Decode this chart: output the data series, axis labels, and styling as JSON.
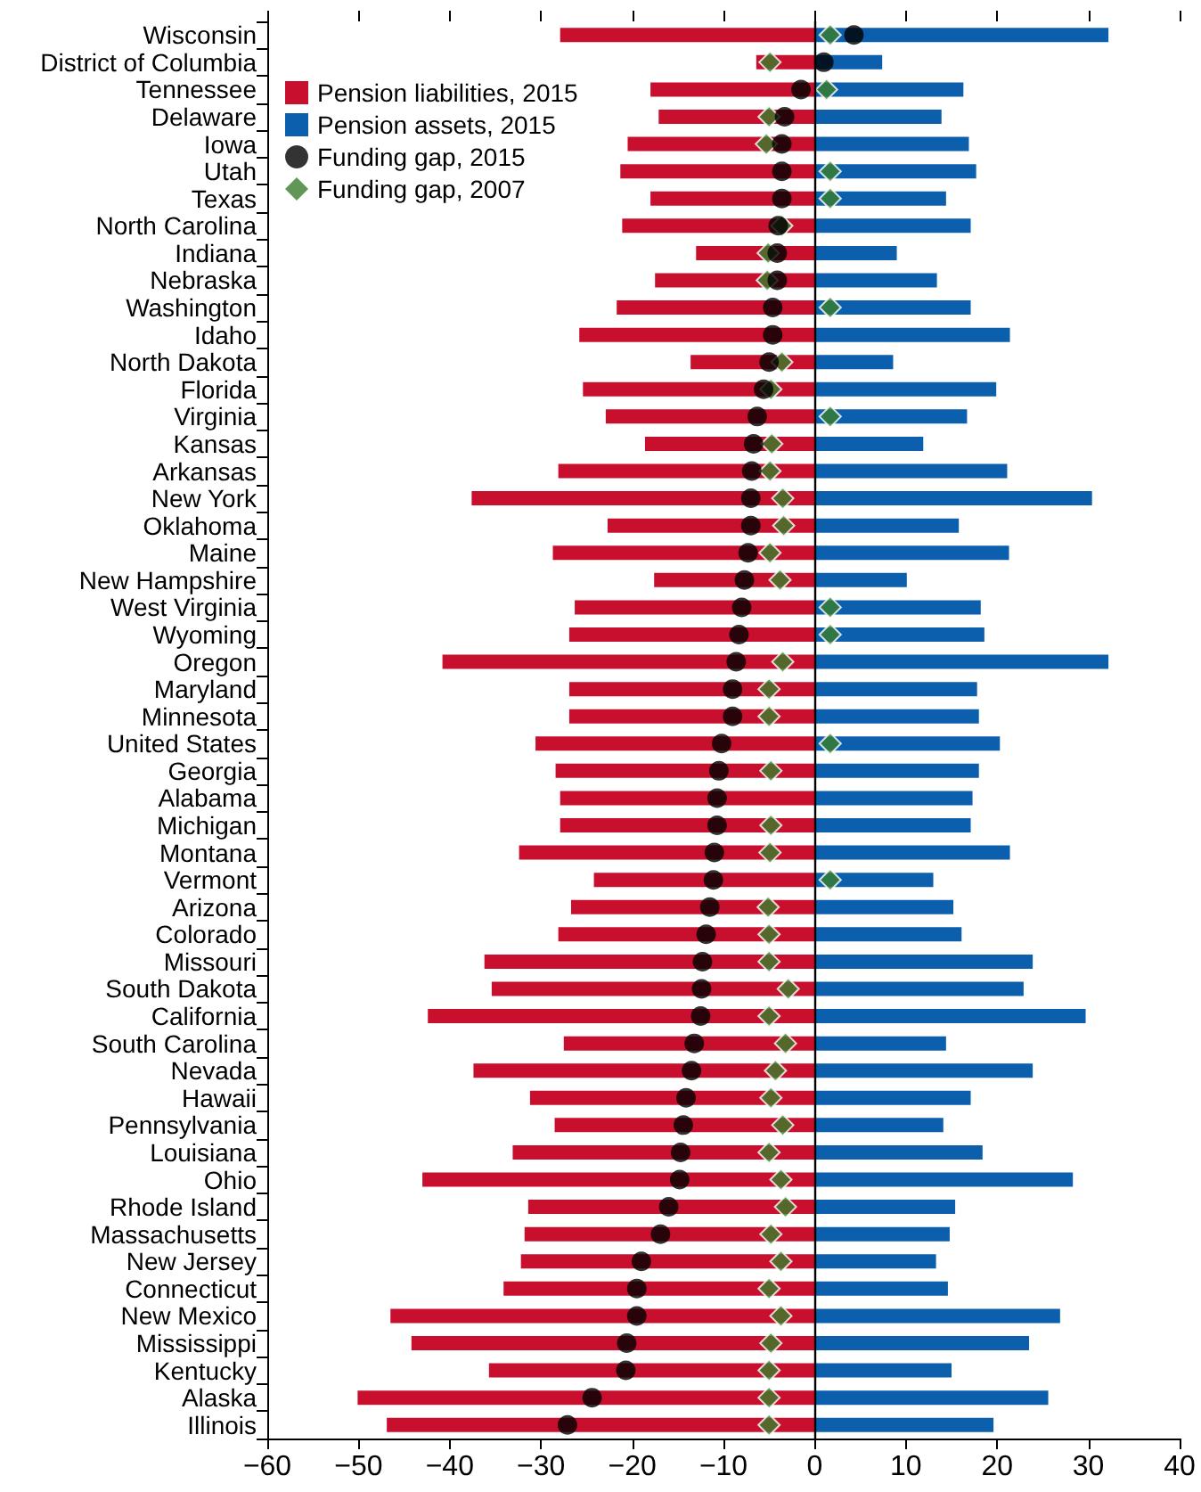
{
  "chart_data": {
    "type": "bar",
    "orientation": "horizontal",
    "legend": "top left",
    "grid": false,
    "stacked": true,
    "categories": [
      "Wisconsin",
      "District of Columbia",
      "Tennessee",
      "Delaware",
      "Iowa",
      "Utah",
      "Texas",
      "North Carolina",
      "Indiana",
      "Nebraska",
      "Washington",
      "Idaho",
      "North Dakota",
      "Florida",
      "Virginia",
      "Kansas",
      "Arkansas",
      "New York",
      "Oklahoma",
      "Maine",
      "New Hampshire",
      "West Virginia",
      "Wyoming",
      "Oregon",
      "Maryland",
      "Minnesota",
      "United States",
      "Georgia",
      "Alabama",
      "Michigan",
      "Montana",
      "Vermont",
      "Arizona",
      "Colorado",
      "Missouri",
      "South Dakota",
      "California",
      "South Carolina",
      "Nevada",
      "Hawaii",
      "Pennsylvania",
      "Louisiana",
      "Ohio",
      "Rhode Island",
      "Massachusetts",
      "New Jersey",
      "Connecticut",
      "New Mexico",
      "Mississippi",
      "Kentucky",
      "Alaska",
      "Illinois"
    ],
    "xlim": [
      -60,
      40
    ],
    "xticks": [
      -60,
      -50,
      -40,
      -30,
      -20,
      -10,
      0,
      10,
      20,
      30,
      40
    ],
    "ref_lines": [
      {
        "axis": "x",
        "value": 0,
        "color": "#000000"
      }
    ],
    "series": [
      {
        "name": "Pension liabilities, 2015",
        "color": "#c8102e",
        "values": [
          -27.9,
          -6.4,
          -18.0,
          -17.1,
          -20.5,
          -21.3,
          -18.0,
          -21.1,
          -13.0,
          -17.5,
          -21.7,
          -25.8,
          -13.6,
          -25.4,
          -22.9,
          -18.6,
          -28.1,
          -37.6,
          -22.7,
          -28.7,
          -17.6,
          -26.3,
          -26.9,
          -40.8,
          -26.9,
          -26.9,
          -30.6,
          -28.4,
          -27.9,
          -27.9,
          -32.4,
          -24.2,
          -26.7,
          -28.1,
          -36.2,
          -35.4,
          -42.4,
          -27.5,
          -37.4,
          -31.2,
          -28.5,
          -33.1,
          -43.0,
          -31.4,
          -31.8,
          -32.2,
          -34.1,
          -46.5,
          -44.2,
          -35.7,
          -50.1,
          -46.9
        ]
      },
      {
        "name": "Pension assets, 2015",
        "color": "#0b5fad",
        "values": [
          32.2,
          7.4,
          16.3,
          13.9,
          16.9,
          17.7,
          14.4,
          17.1,
          9.0,
          13.4,
          17.1,
          21.4,
          8.6,
          19.9,
          16.7,
          11.9,
          21.1,
          30.4,
          15.8,
          21.3,
          10.1,
          18.2,
          18.6,
          32.2,
          17.8,
          18.0,
          20.3,
          18.0,
          17.3,
          17.1,
          21.4,
          13.0,
          15.2,
          16.1,
          23.9,
          22.9,
          29.7,
          14.4,
          23.9,
          17.1,
          14.1,
          18.4,
          28.3,
          15.4,
          14.8,
          13.3,
          14.6,
          26.9,
          23.5,
          15.0,
          25.6,
          19.6
        ]
      },
      {
        "name": "Funding gap, 2015",
        "type": "scatter",
        "marker": "circle",
        "color": "#000000",
        "values": [
          4.3,
          1.0,
          -1.5,
          -3.3,
          -3.6,
          -3.6,
          -3.6,
          -4.0,
          -4.1,
          -4.1,
          -4.6,
          -4.6,
          -5.0,
          -5.6,
          -6.3,
          -6.7,
          -6.9,
          -7.0,
          -7.0,
          -7.3,
          -7.7,
          -8.0,
          -8.3,
          -8.6,
          -9.0,
          -9.0,
          -10.2,
          -10.5,
          -10.7,
          -10.7,
          -11.0,
          -11.1,
          -11.5,
          -11.9,
          -12.3,
          -12.4,
          -12.5,
          -13.2,
          -13.5,
          -14.1,
          -14.4,
          -14.7,
          -14.8,
          -16.0,
          -16.9,
          -19.0,
          -19.5,
          -19.5,
          -20.6,
          -20.7,
          -24.4,
          -27.1
        ]
      },
      {
        "name": "Funding gap, 2007",
        "type": "scatter",
        "marker": "diamond",
        "color": "#3a7d2c",
        "values": [
          1.7,
          -4.9,
          1.3,
          -5.0,
          -5.3,
          1.7,
          1.7,
          -3.6,
          -5.1,
          -5.2,
          1.7,
          null,
          -3.6,
          -4.8,
          1.7,
          -4.7,
          -4.9,
          -3.5,
          -3.4,
          -4.9,
          -3.8,
          1.7,
          1.7,
          -3.5,
          -5.0,
          -5.0,
          1.7,
          -4.8,
          null,
          -4.8,
          -4.9,
          1.7,
          -5.1,
          -5.0,
          -5.0,
          -2.9,
          -5.0,
          -3.2,
          -4.3,
          -4.8,
          -3.5,
          -5.0,
          -3.7,
          -3.2,
          -4.8,
          -3.7,
          -5.0,
          -3.7,
          -4.8,
          -5.0,
          -5.0,
          -5.0
        ]
      }
    ]
  }
}
